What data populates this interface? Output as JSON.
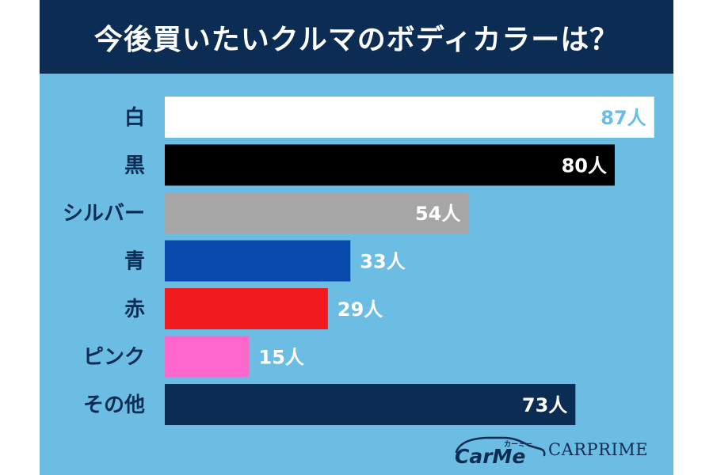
{
  "title": "今後買いたいクルマのボディカラーは？",
  "chart_data": {
    "type": "bar",
    "orientation": "horizontal",
    "title": "今後買いたいクルマのボディカラーは？",
    "unit": "人",
    "categories": [
      "白",
      "黒",
      "シルバー",
      "青",
      "赤",
      "ピンク",
      "その他"
    ],
    "values": [
      87,
      80,
      54,
      33,
      29,
      15,
      73
    ],
    "value_labels": [
      "87人",
      "80人",
      "54人",
      "33人",
      "29人",
      "15人",
      "73人"
    ],
    "bar_colors": [
      "#ffffff",
      "#000000",
      "#a6a6a6",
      "#0a4aad",
      "#f01a1f",
      "#ff66cc",
      "#0b2d54"
    ],
    "label_colors": [
      "#6cbde3",
      "#ffffff",
      "#ffffff",
      "#ffffff",
      "#ffffff",
      "#ffffff",
      "#ffffff"
    ],
    "label_positions": [
      "inside",
      "inside",
      "inside",
      "outside",
      "outside",
      "outside",
      "inside"
    ],
    "grid": false,
    "legend": "none"
  },
  "colors": {
    "background": "#6cbde3",
    "title_bar": "#0b2d54",
    "category_text": "#0b2d54"
  },
  "logos": {
    "carme_kana": "カーミー",
    "carme": "CarMe",
    "carprime": "CARPRIME"
  }
}
